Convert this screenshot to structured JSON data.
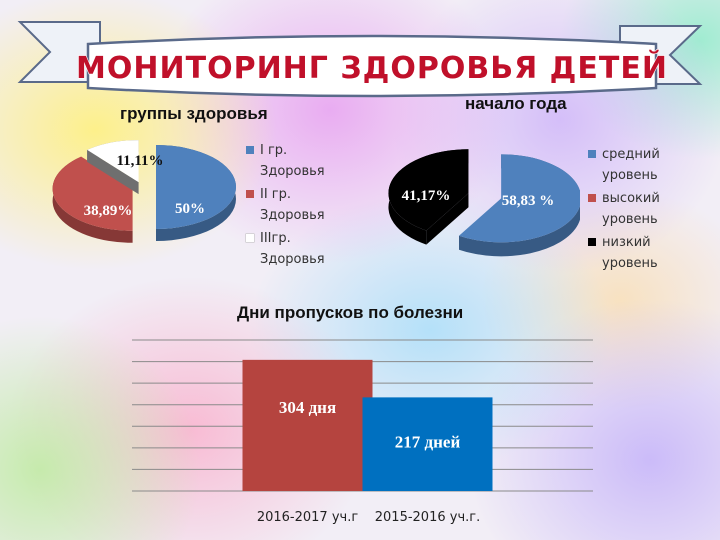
{
  "banner": {
    "title": "МОНИТОРИНГ ЗДОРОВЬЯ ДЕТЕЙ"
  },
  "chart_data": [
    {
      "type": "pie",
      "title": "группы здоровья",
      "categories": [
        "I гр. Здоровья",
        "II гр. Здоровья",
        "IIIгр. Здоровья"
      ],
      "values": [
        50,
        38.89,
        11.11
      ],
      "data_labels": [
        "50%",
        "38,89%",
        "11,11%"
      ],
      "colors": [
        "#4f81bd",
        "#c0504d",
        "#ffffff"
      ],
      "legend_position": "right",
      "legend": [
        {
          "line1": "I гр.",
          "line2": "Здоровья"
        },
        {
          "line1": "II гр.",
          "line2": "Здоровья"
        },
        {
          "line1": "IIIгр.",
          "line2": "Здоровья"
        }
      ]
    },
    {
      "type": "pie",
      "title": "начало года",
      "categories": [
        "средний уровень",
        "высокий уровень",
        "низкий уровень"
      ],
      "values": [
        58.83,
        0,
        41.17
      ],
      "data_labels": [
        "58,83 %",
        "",
        "41,17%"
      ],
      "colors": [
        "#4f81bd",
        "#c0504d",
        "#000000"
      ],
      "legend_position": "right",
      "legend": [
        {
          "line1": "средний",
          "line2": "уровень"
        },
        {
          "line1": "высокий",
          "line2": "уровень"
        },
        {
          "line1": "низкий",
          "line2": "уровень"
        }
      ]
    },
    {
      "type": "bar",
      "title": "Дни пропусков по болезни",
      "categories": [
        "2016-2017 уч.г",
        "2015-2016 уч.г."
      ],
      "values": [
        304,
        217
      ],
      "data_labels": [
        "304 дня",
        "217 дней"
      ],
      "colors": [
        "#b5443f",
        "#0070c0"
      ],
      "ylim": [
        0,
        350
      ],
      "grid": true
    }
  ]
}
